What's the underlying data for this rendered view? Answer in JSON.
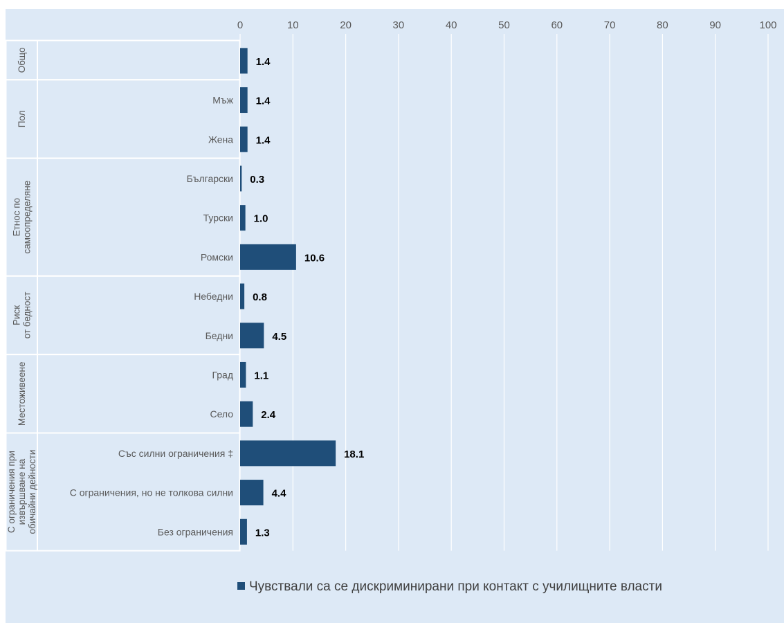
{
  "chart_data": {
    "type": "bar",
    "orientation": "horizontal",
    "title": "",
    "xlabel": "",
    "ylabel": "",
    "xlim": [
      0,
      100
    ],
    "x_ticks": [
      0,
      10,
      20,
      30,
      40,
      50,
      60,
      70,
      80,
      90,
      100
    ],
    "grid": true,
    "legend_position": "bottom",
    "bar_color": "#1f4e79",
    "groups": [
      {
        "label": "Общо",
        "label_lines": [
          "Общо"
        ],
        "items": [
          {
            "label": "",
            "value": 1.4
          }
        ]
      },
      {
        "label": "Пол",
        "label_lines": [
          "Пол"
        ],
        "items": [
          {
            "label": "Мъж",
            "value": 1.4
          },
          {
            "label": "Жена",
            "value": 1.4
          }
        ]
      },
      {
        "label": "Етнос по самоопределяне",
        "label_lines": [
          "Етнос по",
          "самоопределяне"
        ],
        "items": [
          {
            "label": "Български",
            "value": 0.3
          },
          {
            "label": "Турски",
            "value": 1.0
          },
          {
            "label": "Ромски",
            "value": 10.6
          }
        ]
      },
      {
        "label": "Риск от бедност",
        "label_lines": [
          "Риск",
          "от бедност"
        ],
        "items": [
          {
            "label": "Небедни",
            "value": 0.8
          },
          {
            "label": "Бедни",
            "value": 4.5
          }
        ]
      },
      {
        "label": "Местоживеене",
        "label_lines": [
          "Местоживеене"
        ],
        "items": [
          {
            "label": "Град",
            "value": 1.1
          },
          {
            "label": "Село",
            "value": 2.4
          }
        ]
      },
      {
        "label": "С ограничения при извършване на обичайни дейности",
        "label_lines": [
          "С ограничения при",
          "извършване на",
          "обичайни дейности"
        ],
        "items": [
          {
            "label": "Със силни ограничения ‡",
            "value": 18.1
          },
          {
            "label": "С ограничения, но не толкова силни",
            "value": 4.4
          },
          {
            "label": "Без ограничения",
            "value": 1.3
          }
        ]
      }
    ],
    "series": [
      {
        "name": "Чувствали са се дискриминирани при контакт с училищните власти",
        "color": "#1f4e79"
      }
    ]
  }
}
